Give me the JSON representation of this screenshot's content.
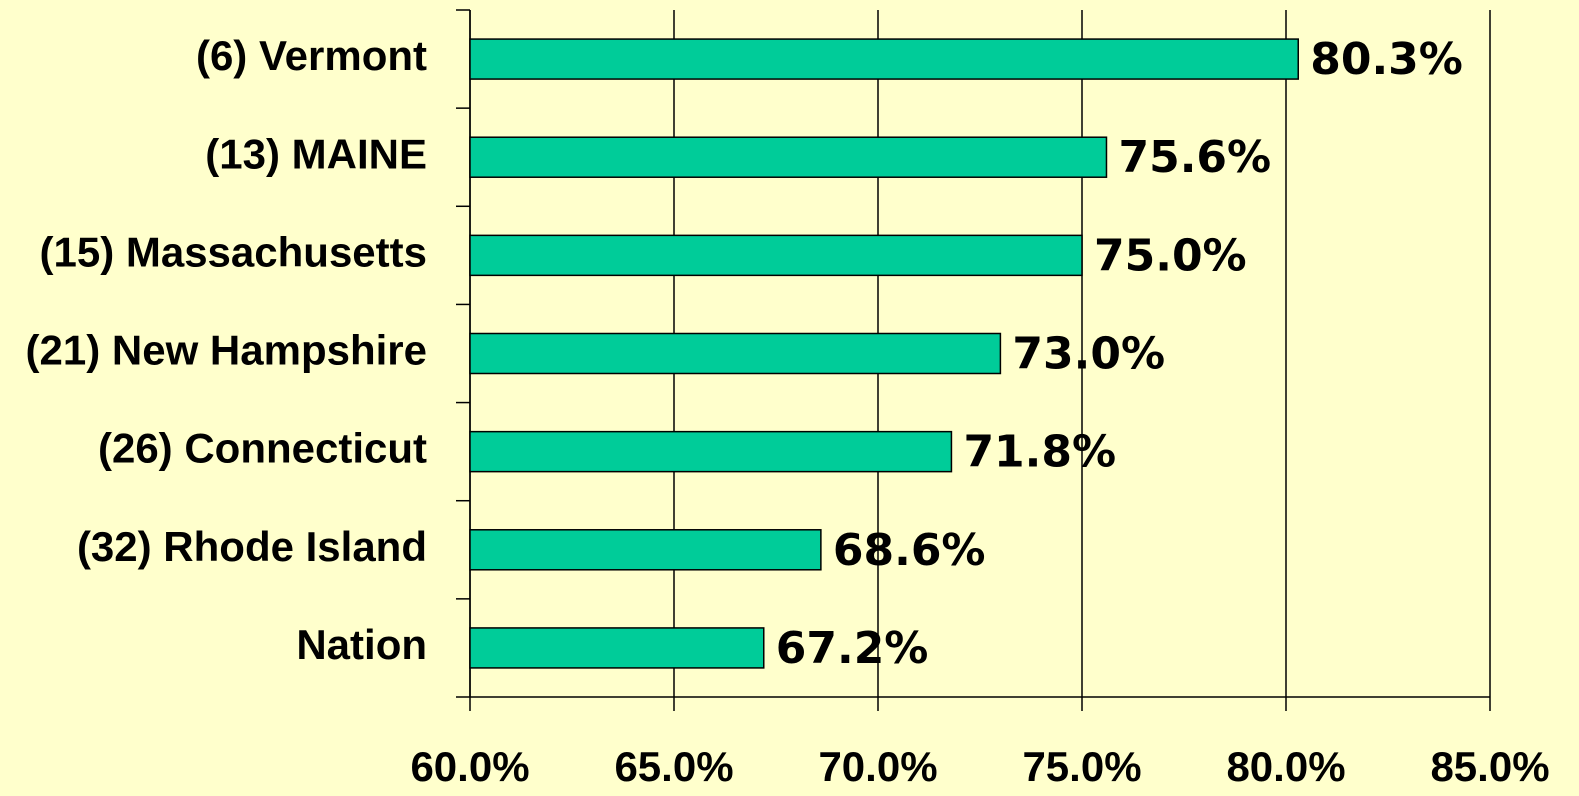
{
  "chart_data": {
    "type": "bar",
    "orientation": "horizontal",
    "categories": [
      "(6) Vermont",
      "(13) MAINE",
      "(15) Massachusetts",
      "(21) New Hampshire",
      "(26) Connecticut",
      "(32) Rhode Island",
      "Nation"
    ],
    "values": [
      80.3,
      75.6,
      75.0,
      73.0,
      71.8,
      68.6,
      67.2
    ],
    "value_labels": [
      "80.3%",
      "75.6%",
      "75.0%",
      "73.0%",
      "71.8%",
      "68.6%",
      "67.2%"
    ],
    "color": "#00cc99",
    "xlim": [
      60,
      85
    ],
    "xticks": [
      {
        "value": 60,
        "label": "60.0%"
      },
      {
        "value": 65,
        "label": "65.0%"
      },
      {
        "value": 70,
        "label": "70.0%"
      },
      {
        "value": 75,
        "label": "75.0%"
      },
      {
        "value": 80,
        "label": "80.0%"
      },
      {
        "value": 85,
        "label": "85.0%"
      }
    ],
    "grid": true
  }
}
